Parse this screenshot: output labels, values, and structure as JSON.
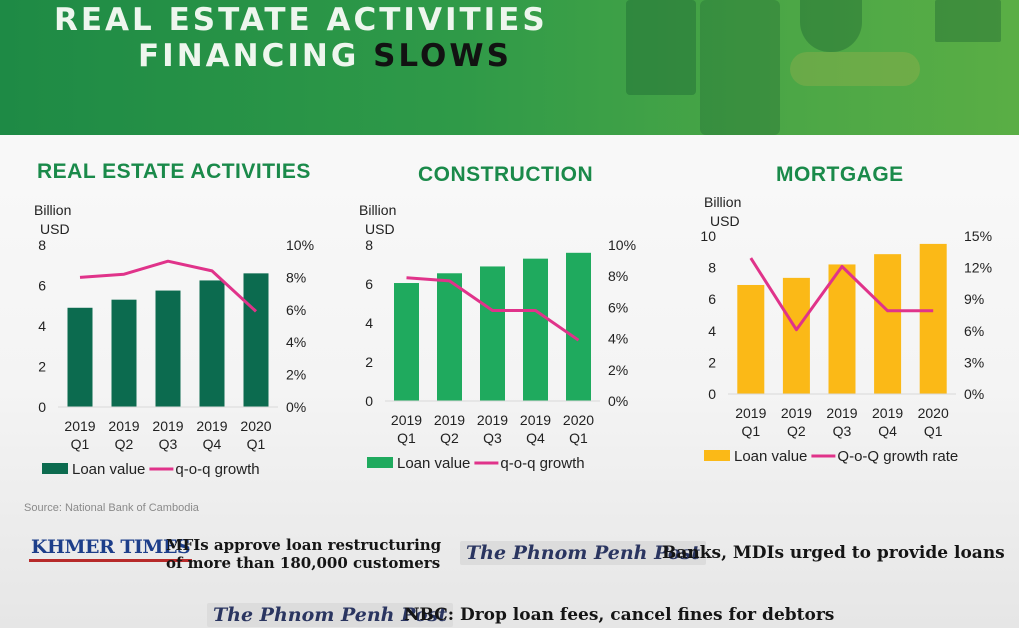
{
  "header": {
    "title_line1": "REAL ESTATE ACTIVITIES",
    "title_line2_a": "FINANCING",
    "title_line2_b": "SLOWS"
  },
  "colors": {
    "banner_green": "#2f9a48",
    "title_green": "#1a8a4a",
    "dark_green_bar": "#0c6b4f",
    "green_bar": "#1faa5e",
    "yellow_bar": "#fbb917",
    "growth_line": "#e0338a"
  },
  "chart_data": [
    {
      "type": "bar",
      "title": "REAL ESTATE ACTIVITIES",
      "categories": [
        [
          "2019",
          "Q1"
        ],
        [
          "2019",
          "Q2"
        ],
        [
          "2019",
          "Q3"
        ],
        [
          "2019",
          "Q4"
        ],
        [
          "2020",
          "Q1"
        ]
      ],
      "ylabel_line1": "Billion",
      "ylabel_line2": "USD",
      "ylim": [
        0,
        8
      ],
      "yticks": [
        "0",
        "2",
        "4",
        "6",
        "8"
      ],
      "y2lim": [
        0,
        10
      ],
      "y2ticks": [
        "0%",
        "2%",
        "4%",
        "6%",
        "8%",
        "10%"
      ],
      "series": [
        {
          "name": "Loan value",
          "kind": "bar",
          "values": [
            4.9,
            5.3,
            5.75,
            6.25,
            6.6
          ]
        },
        {
          "name": "q-o-q growth",
          "kind": "line",
          "axis": "right",
          "values": [
            8.0,
            8.2,
            9.0,
            8.4,
            5.9
          ]
        }
      ],
      "bar_color": "#0c6b4f",
      "line_color": "#e0338a",
      "legend": "bottom"
    },
    {
      "type": "bar",
      "title": "CONSTRUCTION",
      "categories": [
        [
          "2019",
          "Q1"
        ],
        [
          "2019",
          "Q2"
        ],
        [
          "2019",
          "Q3"
        ],
        [
          "2019",
          "Q4"
        ],
        [
          "2020",
          "Q1"
        ]
      ],
      "ylabel_line1": "Billion",
      "ylabel_line2": "USD",
      "ylim": [
        0,
        8
      ],
      "yticks": [
        "0",
        "2",
        "4",
        "6",
        "8"
      ],
      "y2lim": [
        0,
        10
      ],
      "y2ticks": [
        "0%",
        "2%",
        "4%",
        "6%",
        "8%",
        "10%"
      ],
      "series": [
        {
          "name": "Loan value",
          "kind": "bar",
          "values": [
            6.05,
            6.55,
            6.9,
            7.3,
            7.6
          ]
        },
        {
          "name": "q-o-q growth",
          "kind": "line",
          "axis": "right",
          "values": [
            7.9,
            7.7,
            5.8,
            5.8,
            3.9
          ]
        }
      ],
      "bar_color": "#1faa5e",
      "line_color": "#e0338a",
      "legend": "bottom"
    },
    {
      "type": "bar",
      "title": "MORTGAGE",
      "categories": [
        [
          "2019",
          "Q1"
        ],
        [
          "2019",
          "Q2"
        ],
        [
          "2019",
          "Q3"
        ],
        [
          "2019",
          "Q4"
        ],
        [
          "2020",
          "Q1"
        ]
      ],
      "ylabel_line1": "Billion",
      "ylabel_line2": "USD",
      "ylim": [
        0,
        10
      ],
      "yticks": [
        "0",
        "2",
        "4",
        "6",
        "8",
        "10"
      ],
      "y2lim": [
        0,
        15
      ],
      "y2ticks": [
        "0%",
        "3%",
        "6%",
        "9%",
        "12%",
        "15%"
      ],
      "series": [
        {
          "name": "Loan value",
          "kind": "bar",
          "values": [
            6.9,
            7.35,
            8.2,
            8.85,
            9.5
          ]
        },
        {
          "name": "Q-o-Q growth rate",
          "kind": "line",
          "axis": "right",
          "values": [
            12.9,
            6.1,
            12.1,
            7.9,
            7.9
          ]
        }
      ],
      "bar_color": "#fbb917",
      "line_color": "#e0338a",
      "legend": "bottom"
    }
  ],
  "source": "Source: National Bank of Cambodia",
  "news": {
    "logo_khmer_times": "KHMER TIMES",
    "headline_1_line1": "MFIs approve loan restructuring",
    "headline_1_line2": "of more than 180,000 customers",
    "logo_ppp_1": "The Phnom Penh Post",
    "headline_2": "Banks, MDIs urged to provide loans",
    "logo_ppp_2": "The Phnom Penh Post",
    "headline_3": "NBC: Drop loan fees, cancel fines for debtors"
  }
}
